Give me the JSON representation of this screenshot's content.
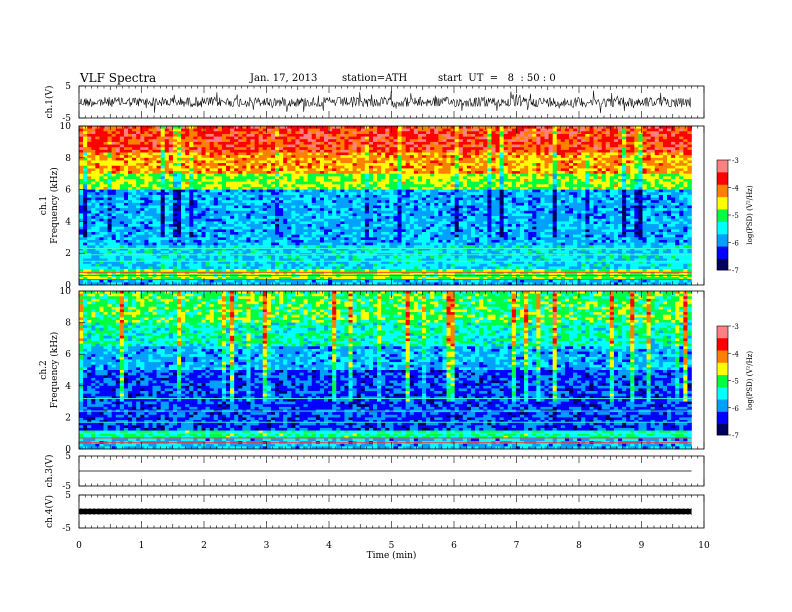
{
  "header": {
    "title": "VLF Spectra",
    "date": "Jan. 17, 2013",
    "station": "station=ATH",
    "start": "start  UT  =   8  : 50 : 0"
  },
  "chart_data": [
    {
      "type": "line",
      "name": "ch1-waveform",
      "ylabel": "ch.1(V)",
      "ylim": [
        -5,
        5
      ],
      "yticks": [
        "5",
        "-5"
      ],
      "xlim": [
        0,
        10
      ],
      "x_end": 9.8
    },
    {
      "type": "heatmap",
      "name": "ch1-spectrogram",
      "ylabel": "ch.1\nFrequency  (kHz)",
      "ylim": [
        0,
        10
      ],
      "yticks": [
        "0",
        "2",
        "4",
        "6",
        "8",
        "10"
      ],
      "xlim": [
        0,
        10
      ],
      "x_end": 9.8,
      "colorbar": {
        "label": "log(PSD) (V²/Hz)",
        "range": [
          -7,
          -3
        ],
        "ticks": [
          "-3",
          "-4",
          "-5",
          "-6",
          "-7"
        ]
      }
    },
    {
      "type": "heatmap",
      "name": "ch2-spectrogram",
      "ylabel": "ch.2\nFrequency  (kHz)",
      "ylim": [
        0,
        10
      ],
      "yticks": [
        "0",
        "2",
        "4",
        "6",
        "8",
        "10"
      ],
      "xlim": [
        0,
        10
      ],
      "x_end": 9.8,
      "colorbar": {
        "label": "log(PSD) (V²/Hz)",
        "range": [
          -7,
          -3
        ],
        "ticks": [
          "-3",
          "-4",
          "-5",
          "-6",
          "-7"
        ]
      }
    },
    {
      "type": "line",
      "name": "ch3-waveform",
      "ylabel": "ch.3(V)",
      "ylim": [
        -5,
        5
      ],
      "yticks": [
        "5",
        "-5"
      ],
      "xlim": [
        0,
        10
      ],
      "x_end": 9.8
    },
    {
      "type": "line",
      "name": "ch4-waveform",
      "ylabel": "ch.4(V)",
      "ylim": [
        -5,
        5
      ],
      "yticks": [
        "5",
        "-5"
      ],
      "xlim": [
        0,
        10
      ],
      "x_end": 9.8
    }
  ],
  "xaxis": {
    "label": "Time  (min)",
    "ticks": [
      "0",
      "1",
      "2",
      "3",
      "4",
      "5",
      "6",
      "7",
      "8",
      "9",
      "10"
    ]
  },
  "colors": {
    "axis": "#000000",
    "trace": "#000000",
    "colormap": [
      "#000060",
      "#0000ff",
      "#00a0ff",
      "#00ffff",
      "#00ff40",
      "#ffff00",
      "#ff8000",
      "#ff0000",
      "#ff8080",
      "#ffffff"
    ]
  }
}
